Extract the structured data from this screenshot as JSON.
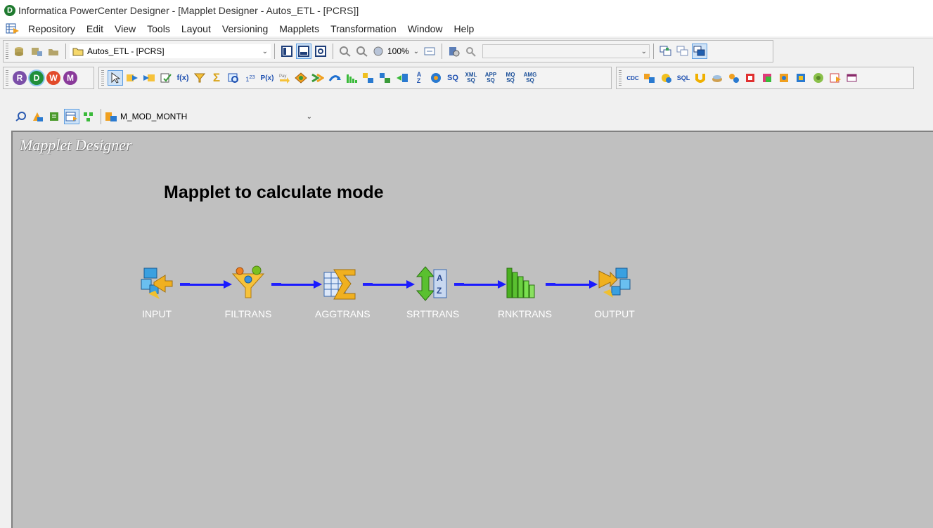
{
  "window": {
    "title": "Informatica PowerCenter Designer - [Mapplet Designer - Autos_ETL - [PCRS]]",
    "app_letter": "D"
  },
  "menu": {
    "items": [
      "Repository",
      "Edit",
      "View",
      "Tools",
      "Layout",
      "Versioning",
      "Mapplets",
      "Transformation",
      "Window",
      "Help"
    ]
  },
  "toolbar": {
    "folder_combo": "Autos_ETL - [PCRS]",
    "zoom": "100%",
    "search_combo": "",
    "client_buttons": [
      "R",
      "D",
      "W",
      "M"
    ],
    "sq_label": "SQ",
    "sql_label": "SQL",
    "cdc_label": "CDC",
    "xml_sq": [
      "XML",
      "SQ"
    ],
    "app_sq": [
      "APP",
      "SQ"
    ],
    "mq_sq": [
      "MQ",
      "SQ"
    ],
    "amg_sq": [
      "AMG",
      "SQ"
    ]
  },
  "mapplet_bar": {
    "selected_mapplet": "M_MOD_MONTH"
  },
  "canvas": {
    "workspace_label": "Mapplet Designer",
    "title": "Mapplet to calculate mode",
    "nodes": [
      {
        "label": "INPUT",
        "icon": "mapplet-input-icon"
      },
      {
        "label": "FILTRANS",
        "icon": "filter-transformation-icon"
      },
      {
        "label": "AGGTRANS",
        "icon": "aggregator-transformation-icon"
      },
      {
        "label": "SRTTRANS",
        "icon": "sorter-transformation-icon"
      },
      {
        "label": "RNKTRANS",
        "icon": "rank-transformation-icon"
      },
      {
        "label": "OUTPUT",
        "icon": "mapplet-output-icon"
      }
    ]
  },
  "colors": {
    "canvas_bg": "#c0c0c0",
    "link": "#1a1aff",
    "node_label": "#ffffff"
  }
}
